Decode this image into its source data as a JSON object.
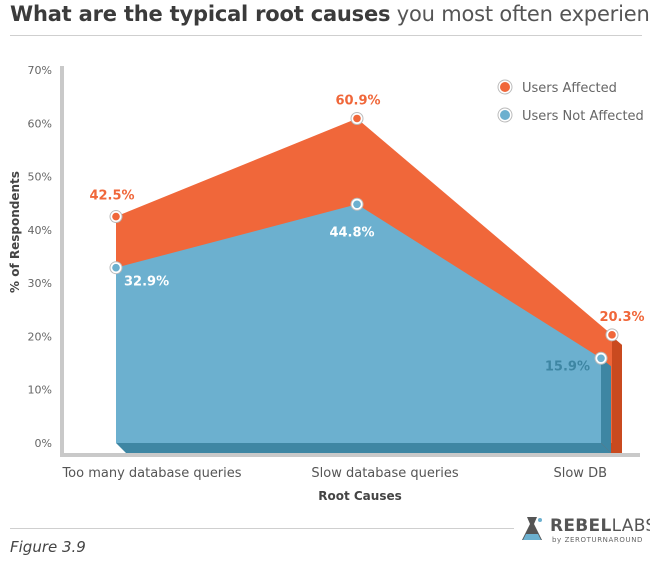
{
  "title": {
    "bold": "What are the typical root causes",
    "light": " you most often experience"
  },
  "figure_label": "Figure 3.9",
  "logo": {
    "word_bold": "REBEL",
    "word_rest": "LABS",
    "subtitle": "by ZEROTURNAROUND"
  },
  "colors": {
    "affected": "#f0673a",
    "affected_dark": "#c94a1f",
    "not_affected": "#6cb0cf",
    "not_affected_dark": "#3e86a3",
    "axis": "#c9c9c9",
    "tick_text": "#666666"
  },
  "chart_data": {
    "type": "area",
    "xlabel": "Root Causes",
    "ylabel": "% of Respondents",
    "ylim": [
      0,
      70
    ],
    "yticks": [
      "0%",
      "10%",
      "20%",
      "30%",
      "40%",
      "50%",
      "60%",
      "70%"
    ],
    "ytick_values": [
      0,
      10,
      20,
      30,
      40,
      50,
      60,
      70
    ],
    "categories": [
      "Too many database queries",
      "Slow database queries",
      "Slow DB"
    ],
    "legend_position": "top-right",
    "series": [
      {
        "name": "Users Affected",
        "values": [
          42.5,
          60.9,
          20.3
        ],
        "labels": [
          "42.5%",
          "60.9%",
          "20.3%"
        ]
      },
      {
        "name": "Users Not Affected",
        "values": [
          32.9,
          44.8,
          15.9
        ],
        "labels": [
          "32.9%",
          "44.8%",
          "15.9%"
        ]
      }
    ]
  }
}
